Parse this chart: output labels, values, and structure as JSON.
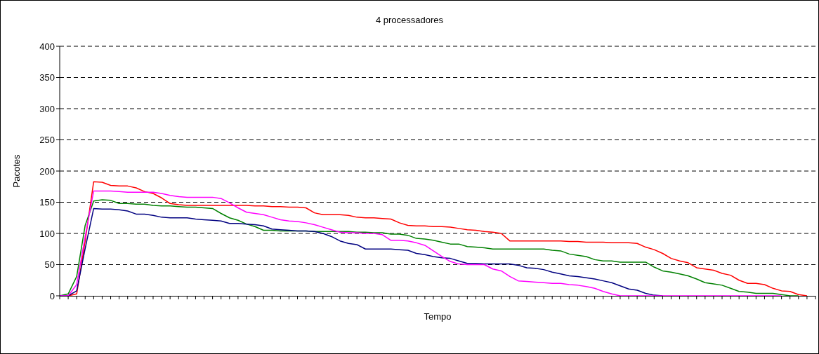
{
  "chart_data": {
    "type": "line",
    "title": "4 processadores",
    "xlabel": "Tempo",
    "ylabel": "Pacotes",
    "categories": [
      null,
      null,
      null,
      null,
      null,
      null,
      null,
      null,
      null,
      null,
      null,
      null,
      null,
      null,
      null,
      null,
      null,
      null,
      null,
      null,
      null,
      null,
      null,
      null,
      null,
      null,
      null,
      null,
      null,
      null,
      null,
      null,
      null,
      null,
      null,
      null,
      null,
      null,
      null,
      null,
      null,
      null,
      null,
      null,
      null,
      null,
      null,
      null,
      null,
      null,
      null,
      null,
      null,
      null,
      null,
      null,
      null,
      null,
      null,
      null,
      null,
      null,
      null,
      null,
      null,
      null,
      null,
      null,
      null,
      null,
      null,
      null,
      null,
      null,
      null,
      null,
      null,
      null,
      null,
      null,
      null,
      null,
      null,
      null,
      null,
      null,
      null,
      null,
      null,
      null
    ],
    "series": [
      {
        "color": "#ff0000",
        "values": [
          0,
          0,
          3,
          88,
          183,
          182,
          177,
          176,
          176,
          173,
          167,
          164,
          157,
          148,
          146,
          145,
          145,
          145,
          145,
          145,
          145,
          145,
          145,
          144,
          144,
          143,
          143,
          142,
          142,
          141,
          133,
          130,
          130,
          130,
          129,
          126,
          125,
          125,
          124,
          123,
          117,
          113,
          112,
          112,
          111,
          111,
          110,
          108,
          106,
          105,
          103,
          102,
          100,
          88,
          88,
          88,
          88,
          88,
          88,
          88,
          87,
          87,
          86,
          86,
          86,
          85,
          85,
          85,
          84,
          78,
          74,
          68,
          60,
          56,
          53,
          45,
          43,
          41,
          36,
          33,
          25,
          20,
          20,
          18,
          12,
          8,
          7,
          2,
          0,
          null
        ]
      },
      {
        "color": "#008000",
        "values": [
          0,
          3,
          31,
          113,
          152,
          154,
          153,
          148,
          148,
          147,
          147,
          145,
          144,
          144,
          143,
          142,
          142,
          141,
          140,
          132,
          125,
          121,
          115,
          111,
          105,
          105,
          104,
          104,
          104,
          104,
          103,
          103,
          103,
          103,
          103,
          102,
          102,
          101,
          101,
          99,
          99,
          97,
          92,
          91,
          89,
          86,
          83,
          83,
          79,
          78,
          77,
          75,
          75,
          75,
          75,
          75,
          75,
          75,
          73,
          72,
          67,
          65,
          63,
          58,
          56,
          56,
          54,
          54,
          54,
          54,
          46,
          40,
          38,
          35,
          32,
          27,
          21,
          19,
          17,
          12,
          7,
          6,
          4,
          4,
          4,
          2,
          0,
          0,
          null,
          null
        ]
      },
      {
        "color": "#000080",
        "values": [
          0,
          0,
          8,
          76,
          140,
          139,
          139,
          138,
          136,
          131,
          131,
          129,
          126,
          125,
          125,
          125,
          123,
          122,
          121,
          120,
          116,
          116,
          115,
          114,
          112,
          107,
          106,
          105,
          104,
          104,
          103,
          100,
          95,
          88,
          84,
          82,
          75,
          75,
          75,
          75,
          74,
          73,
          68,
          66,
          63,
          61,
          60,
          56,
          52,
          52,
          51,
          51,
          51,
          51,
          49,
          45,
          44,
          42,
          38,
          35,
          32,
          31,
          29,
          27,
          24,
          21,
          16,
          11,
          9,
          4,
          1,
          0,
          null,
          null,
          null,
          null,
          null,
          null,
          null,
          null,
          null,
          null,
          null,
          null,
          null,
          null,
          null,
          null,
          null,
          null
        ]
      },
      {
        "color": "#ff00ff",
        "values": [
          0,
          0,
          18,
          95,
          168,
          168,
          168,
          167,
          166,
          166,
          166,
          166,
          164,
          161,
          159,
          158,
          158,
          158,
          158,
          156,
          149,
          141,
          134,
          132,
          130,
          126,
          122,
          120,
          119,
          117,
          114,
          110,
          106,
          102,
          101,
          101,
          100,
          100,
          98,
          89,
          89,
          88,
          85,
          81,
          72,
          63,
          55,
          51,
          50,
          50,
          50,
          43,
          40,
          31,
          24,
          23,
          22,
          21,
          20,
          20,
          18,
          17,
          15,
          12,
          7,
          3,
          0,
          0,
          0,
          0,
          0,
          0,
          0,
          0,
          0,
          0,
          0,
          0,
          0,
          0,
          0,
          0,
          0,
          0,
          0,
          0,
          null,
          null,
          null,
          null
        ]
      }
    ],
    "ylim": [
      0,
      400
    ],
    "yticks": [
      0,
      50,
      100,
      150,
      200,
      250,
      300,
      350,
      400
    ],
    "grid": "y",
    "tick_labels": "y",
    "line_style": "solid"
  }
}
